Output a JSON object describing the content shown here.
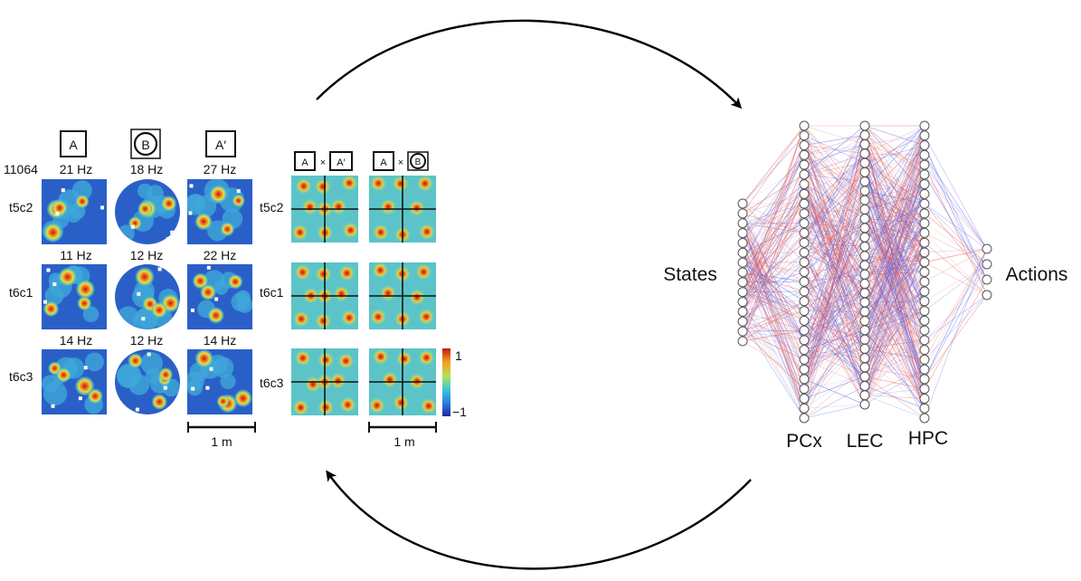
{
  "figure": {
    "animal_id": "11064",
    "environments": [
      {
        "label": "A",
        "shape": "square"
      },
      {
        "label": "B",
        "shape": "circle"
      },
      {
        "label": "A′",
        "shape": "square"
      }
    ],
    "cells": [
      {
        "id": "t5c2",
        "rates": [
          "21 Hz",
          "18 Hz",
          "27 Hz"
        ]
      },
      {
        "id": "t6c1",
        "rates": [
          "11 Hz",
          "12 Hz",
          "22 Hz"
        ]
      },
      {
        "id": "t6c3",
        "rates": [
          "14 Hz",
          "12 Hz",
          "14 Hz"
        ]
      }
    ],
    "cross_headers": [
      {
        "left": "A",
        "times": "×",
        "right": "A′"
      },
      {
        "left": "A",
        "times": "×",
        "right": "B"
      }
    ],
    "colorbar": {
      "max": "1",
      "min": "−1"
    },
    "scale_bars": [
      "1 m",
      "1 m"
    ]
  },
  "network": {
    "input_label": "States",
    "output_label": "Actions",
    "layers": [
      "PCx",
      "LEC",
      "HPC"
    ],
    "node_counts": {
      "states": 15,
      "pcx": 31,
      "lec": 31,
      "hpc": 31,
      "actions": 4
    },
    "edge_colors": {
      "excitatory": "#e8554f",
      "inhibitory": "#4f5fe8"
    }
  },
  "colors": {
    "arrow": "#000000",
    "node_stroke": "#555555"
  }
}
